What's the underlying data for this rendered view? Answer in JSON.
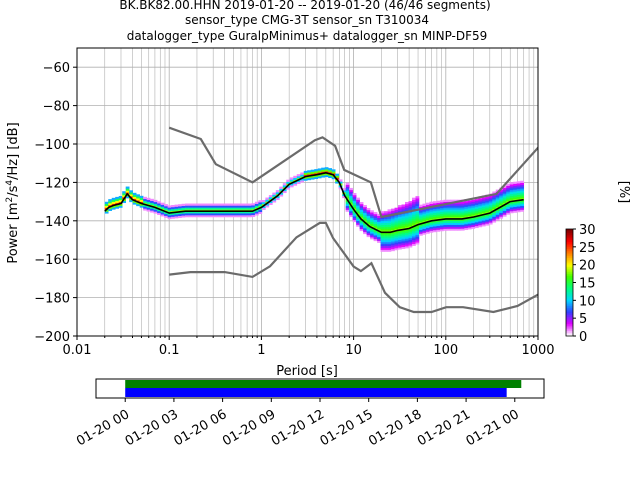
{
  "title_lines": [
    "BK.BK82.00.HHN   2019-01-20 -- 2019-01-20  (46/46 segments)",
    "sensor_type CMG-3T sensor_sn T310034",
    "datalogger_type GuralpMinimus+ datalogger_sn MINP-DF59"
  ],
  "chart_data": {
    "type": "heatmap",
    "title": "BK.BK82.00.HHN   2019-01-20 -- 2019-01-20  (46/46 segments)",
    "xlabel": "Period [s]",
    "ylabel": "Power [m²/s⁴/Hz] [dB]",
    "ylabel_parts": {
      "pre": "Power [m",
      "sup1": "2",
      "mid": "/s",
      "sup2": "4",
      "post": "/Hz] [dB]"
    },
    "x_scale": "log",
    "xlim": [
      0.01,
      1000
    ],
    "ylim": [
      -200,
      -50
    ],
    "x_tick_labels": [
      "0.01",
      "0.1",
      "1",
      "10",
      "100",
      "1000"
    ],
    "x_tick_values": [
      0.01,
      0.1,
      1,
      10,
      100,
      1000
    ],
    "y_tick_values": [
      -200,
      -180,
      -160,
      -140,
      -120,
      -100,
      -80,
      -60
    ],
    "y_tick_labels": [
      "−200",
      "−180",
      "−160",
      "−140",
      "−120",
      "−100",
      "−80",
      "−60"
    ],
    "grid": true,
    "colorbar": {
      "label": "[%]",
      "range": [
        0,
        30
      ],
      "ticks": [
        0,
        5,
        10,
        15,
        20,
        25,
        30
      ],
      "colors": [
        "#ffffff",
        "#e000ff",
        "#3040ff",
        "#00d8ff",
        "#00ff80",
        "#40ff00",
        "#ffff00",
        "#ff8000",
        "#ff0000",
        "#7f0000"
      ]
    },
    "series": [
      {
        "role": "noise-model-high",
        "color": "#6b6b6b",
        "x": [
          0.1,
          0.22,
          0.32,
          0.8,
          3.8,
          4.6,
          6.3,
          7.9,
          15.4,
          20,
          354.8,
          10000
        ],
        "y": [
          -91.5,
          -97.4,
          -110.5,
          -120,
          -98,
          -96.5,
          -101,
          -113.5,
          -120,
          -138,
          -126,
          -48.5
        ]
      },
      {
        "role": "noise-model-low",
        "color": "#6b6b6b",
        "x": [
          0.1,
          0.17,
          0.4,
          0.8,
          1.24,
          2.4,
          4.3,
          5,
          6,
          10,
          12,
          15.6,
          21.9,
          31.6,
          45,
          70,
          101,
          154,
          328,
          600,
          10000
        ],
        "y": [
          -168,
          -166.7,
          -166.7,
          -169.2,
          -163.7,
          -148.6,
          -141.1,
          -141.1,
          -149,
          -163.8,
          -166.2,
          -162.1,
          -177.5,
          -185,
          -187.5,
          -187.5,
          -185,
          -185,
          -187.5,
          -184.4,
          -151.9
        ]
      },
      {
        "role": "mode",
        "color": "#000000",
        "x": [
          0.02,
          0.022,
          0.025,
          0.03,
          0.035,
          0.04,
          0.05,
          0.07,
          0.1,
          0.15,
          0.2,
          0.3,
          0.5,
          0.8,
          1,
          1.5,
          2,
          3,
          4,
          5,
          6,
          7,
          8,
          10,
          12,
          15,
          20,
          25,
          30,
          40,
          50,
          70,
          100,
          150,
          200,
          300,
          500,
          700
        ],
        "y": [
          -135,
          -133,
          -132,
          -131,
          -126,
          -129,
          -131,
          -133,
          -136,
          -135,
          -135,
          -135,
          -135,
          -135,
          -133,
          -127,
          -121,
          -117,
          -116,
          -115,
          -116,
          -120,
          -127,
          -134,
          -139,
          -143,
          -146,
          -146,
          -145,
          -144,
          -142,
          -140,
          -139,
          -139,
          -138,
          -136,
          -130,
          -129
        ]
      }
    ],
    "coverage": {
      "x_tick_labels": [
        "01-20 00",
        "01-20 03",
        "01-20 06",
        "01-20 09",
        "01-20 12",
        "01-20 15",
        "01-20 18",
        "01-20 21",
        "01-21 00"
      ],
      "data_bar": {
        "color": "#008000",
        "start_hours": 0,
        "end_hours": 24.4
      },
      "gap_bar": {
        "color": "#0000ff",
        "start_hours": 0,
        "end_hours": 23.5
      }
    }
  }
}
